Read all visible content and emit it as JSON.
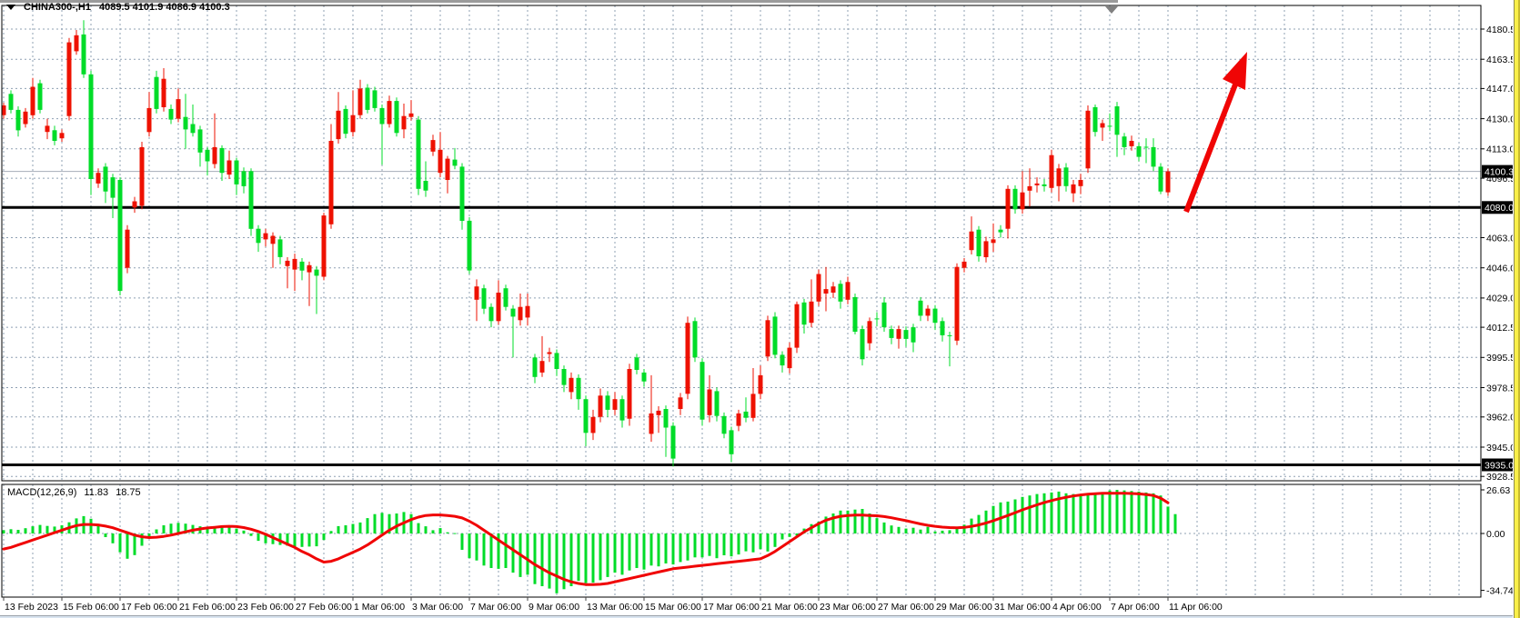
{
  "header": {
    "symbol_period": "CHINA300-,H1",
    "ohlc": "4089.5 4101.9 4086.9 4100.3"
  },
  "macd_panel": {
    "label": "MACD(12,26,9)",
    "value_main": "11.83",
    "value_signal": "18.75"
  },
  "colors": {
    "background": "#FFFFFF",
    "bull": "#EE1100",
    "bear": "#00DC28",
    "macd_histogram": "#00DC28",
    "macd_signal": "#F00505",
    "arrow": "#F00505",
    "grid": "#8FA0B3",
    "tag_bg": "#000000",
    "tag_text": "#FFFFFF",
    "current_price_line": "#A6ADB8",
    "level_line": "#000000",
    "right_strip": "#F9EF49"
  },
  "chart_data": {
    "type": "candlestick",
    "symbol": "CHINA300",
    "timeframe": "H1",
    "ohlc_display": {
      "open": "4089.5",
      "high": "4101.9",
      "low": "4086.9",
      "close": "4100.3"
    },
    "current_price": 4100.3,
    "hlines": [
      4080.0,
      3935.0
    ],
    "price_axis": {
      "ticks": [
        4180.5,
        4163.5,
        4147.0,
        4130.0,
        4113.0,
        4096.5,
        4063.0,
        4046.0,
        4029.0,
        4012.5,
        3995.5,
        3978.5,
        3962.0,
        3945.0,
        3928.5
      ],
      "gridlines": [
        4180.5,
        4163.5,
        4147.0,
        4130.0,
        4113.0,
        4096.5,
        4080.0,
        4063.0,
        4046.0,
        4029.0,
        4012.5,
        3995.5,
        3978.5,
        3962.0,
        3945.0,
        3928.5
      ],
      "tags": [
        4100.3,
        4080.0,
        3935.0
      ],
      "range": [
        3926.5,
        4190.0
      ]
    },
    "time_axis": {
      "labels": [
        "13 Feb 2023",
        "15 Feb 06:00",
        "17 Feb 06:00",
        "21 Feb 06:00",
        "23 Feb 06:00",
        "27 Feb 06:00",
        "1 Mar 06:00",
        "3 Mar 06:00",
        "7 Mar 06:00",
        "9 Mar 06:00",
        "13 Mar 06:00",
        "15 Mar 06:00",
        "17 Mar 06:00",
        "21 Mar 06:00",
        "23 Mar 06:00",
        "27 Mar 06:00",
        "29 Mar 06:00",
        "31 Mar 06:00",
        "4 Apr 06:00",
        "7 Apr 06:00",
        "11 Apr 06:00"
      ]
    },
    "candles": [
      [
        4132,
        4139,
        4130,
        4137.5
      ],
      [
        4144,
        4146,
        4133,
        4135
      ],
      [
        4135,
        4137,
        4120,
        4123.5
      ],
      [
        4127,
        4136,
        4125,
        4134
      ],
      [
        4132,
        4153,
        4130,
        4148
      ],
      [
        4150,
        4152,
        4133,
        4135
      ],
      [
        4122.5,
        4130,
        4118.5,
        4126
      ],
      [
        4123.5,
        4126,
        4115,
        4117.5
      ],
      [
        4119,
        4124,
        4117,
        4122
      ],
      [
        4131.5,
        4175.5,
        4129,
        4173
      ],
      [
        4168,
        4180,
        4166,
        4177
      ],
      [
        4177.5,
        4185.5,
        4153,
        4155
      ],
      [
        4155,
        4157,
        4087,
        4096
      ],
      [
        4093.5,
        4102,
        4091,
        4099.5
      ],
      [
        4103,
        4105,
        4082.5,
        4089
      ],
      [
        4097,
        4099,
        4074,
        4085.5
      ],
      [
        4095.5,
        4097,
        4030.5,
        4033
      ],
      [
        4046,
        4070,
        4043,
        4067.5
      ],
      [
        4080,
        4086,
        4077,
        4083.5
      ],
      [
        4081,
        4117,
        4079,
        4114
      ],
      [
        4122.5,
        4145,
        4120,
        4136
      ],
      [
        4153.5,
        4157,
        4133,
        4135.5
      ],
      [
        4136.5,
        4158.5,
        4134,
        4152.5
      ],
      [
        4135.5,
        4138,
        4127,
        4129.5
      ],
      [
        4130,
        4147,
        4128,
        4141
      ],
      [
        4131,
        4144,
        4113,
        4124
      ],
      [
        4127,
        4138,
        4120,
        4122
      ],
      [
        4124,
        4126,
        4103,
        4111
      ],
      [
        4112.5,
        4114,
        4098,
        4106
      ],
      [
        4104.5,
        4133,
        4102,
        4114
      ],
      [
        4113.5,
        4115,
        4095,
        4099.5
      ],
      [
        4098.5,
        4112,
        4096,
        4106.5
      ],
      [
        4106.5,
        4108,
        4087,
        4093
      ],
      [
        4100.5,
        4102.5,
        4088,
        4092
      ],
      [
        4100.5,
        4102,
        4064,
        4068
      ],
      [
        4068,
        4070,
        4055,
        4060
      ],
      [
        4062,
        4068,
        4058,
        4065.5
      ],
      [
        4059.5,
        4066,
        4046,
        4064
      ],
      [
        4062,
        4064,
        4048,
        4052
      ],
      [
        4047,
        4052,
        4034.5,
        4050
      ],
      [
        4045,
        4054,
        4033,
        4051
      ],
      [
        4049.5,
        4051.5,
        4039,
        4044.5
      ],
      [
        4043.5,
        4049.5,
        4024.5,
        4047.5
      ],
      [
        4045,
        4047,
        4020,
        4041.5
      ],
      [
        4041,
        4077,
        4039,
        4075.5
      ],
      [
        4070.5,
        4127,
        4068,
        4117.5
      ],
      [
        4118.5,
        4145,
        4116,
        4134.5
      ],
      [
        4135.5,
        4137.5,
        4119,
        4121.5
      ],
      [
        4122.5,
        4146,
        4120,
        4132
      ],
      [
        4132,
        4152,
        4130,
        4147
      ],
      [
        4147.5,
        4149.5,
        4133,
        4135
      ],
      [
        4146,
        4148,
        4134,
        4136
      ],
      [
        4136,
        4138,
        4104,
        4127
      ],
      [
        4127,
        4143,
        4125,
        4140
      ],
      [
        4140,
        4142,
        4120,
        4122
      ],
      [
        4124,
        4138.5,
        4119,
        4131.5
      ],
      [
        4131,
        4140.5,
        4129,
        4133
      ],
      [
        4129.5,
        4131.5,
        4087,
        4090.5
      ],
      [
        4095,
        4106,
        4086,
        4089.5
      ],
      [
        4111.5,
        4121,
        4109,
        4118
      ],
      [
        4099.5,
        4122.5,
        4097,
        4112.5
      ],
      [
        4095.5,
        4109,
        4088,
        4107.5
      ],
      [
        4107,
        4113.5,
        4101.5,
        4103.5
      ],
      [
        4103,
        4105,
        4067.5,
        4072.5
      ],
      [
        4072.5,
        4074.5,
        4042.5,
        4044.5
      ],
      [
        4028,
        4039.5,
        4016,
        4035.5
      ],
      [
        4034.5,
        4036.5,
        4020,
        4023
      ],
      [
        4024,
        4026,
        4012.5,
        4016
      ],
      [
        4016,
        4039,
        4014,
        4032
      ],
      [
        4034.5,
        4036.5,
        4022,
        4024
      ],
      [
        4023,
        4025,
        3995.5,
        4018.5
      ],
      [
        4016.5,
        4031.5,
        4013.5,
        4024
      ],
      [
        4018,
        4031.5,
        4013.5,
        4024.5
      ],
      [
        3995.5,
        3997.5,
        3981,
        3984.5
      ],
      [
        3987,
        4007.5,
        3984.5,
        3993.5
      ],
      [
        3997.5,
        4001,
        3993,
        3998.5
      ],
      [
        3998,
        4000,
        3985,
        3989
      ],
      [
        3989,
        3991,
        3976,
        3980
      ],
      [
        3976,
        3987,
        3972,
        3984
      ],
      [
        3984,
        3986,
        3966,
        3972
      ],
      [
        3972,
        3974,
        3945.5,
        3953
      ],
      [
        3953,
        3966,
        3949,
        3962
      ],
      [
        3962,
        3978,
        3959,
        3974
      ],
      [
        3974,
        3976.5,
        3962,
        3966
      ],
      [
        3966,
        3976,
        3963,
        3972
      ],
      [
        3972,
        3974,
        3956,
        3960
      ],
      [
        3961,
        3992,
        3957,
        3989
      ],
      [
        3995.5,
        3997.5,
        3986,
        3988.5
      ],
      [
        3987,
        3989,
        3979,
        3982
      ],
      [
        3952.5,
        3985.5,
        3948,
        3964
      ],
      [
        3963,
        3968,
        3953,
        3965.5
      ],
      [
        3966.5,
        3968.5,
        3939.5,
        3956
      ],
      [
        3957,
        3959,
        3934,
        3938.5
      ],
      [
        3966.5,
        3975.5,
        3963,
        3973
      ],
      [
        3975,
        4018.5,
        3972,
        4015
      ],
      [
        4016,
        4018,
        3993,
        3995.5
      ],
      [
        3993,
        3995,
        3957,
        3960.5
      ],
      [
        3963,
        3985.5,
        3959,
        3977.5
      ],
      [
        3976.5,
        3978.5,
        3959.5,
        3962.5
      ],
      [
        3962.5,
        3964.5,
        3950,
        3952.5
      ],
      [
        3954.5,
        3956.5,
        3936.5,
        3941
      ],
      [
        3957,
        3966,
        3954,
        3964
      ],
      [
        3965,
        3973,
        3959,
        3961.5
      ],
      [
        3961.5,
        3989.5,
        3959.5,
        3975
      ],
      [
        3975,
        3991,
        3972,
        3985.5
      ],
      [
        3996,
        4019,
        3993.5,
        4016.5
      ],
      [
        4018.5,
        4021,
        3995,
        3997
      ],
      [
        3997,
        3999,
        3987,
        3991
      ],
      [
        3989.5,
        4004,
        3986.5,
        4001
      ],
      [
        4001,
        4027,
        3998,
        4025.5
      ],
      [
        4026.5,
        4028.5,
        4009,
        4014
      ],
      [
        4015,
        4039.5,
        4012.5,
        4027
      ],
      [
        4027,
        4045,
        4024.5,
        4042.5
      ],
      [
        4031.5,
        4046.5,
        4021.5,
        4034
      ],
      [
        4032,
        4038,
        4029,
        4035.5
      ],
      [
        4037,
        4039,
        4023,
        4027
      ],
      [
        4028,
        4041,
        4025.5,
        4038
      ],
      [
        4029.5,
        4031.5,
        4008.5,
        4010
      ],
      [
        4011.5,
        4013.5,
        3991,
        3994.5
      ],
      [
        4003.5,
        4018,
        3999.5,
        4016
      ],
      [
        4017.5,
        4021,
        4013,
        4017
      ],
      [
        4026.5,
        4029.5,
        4010,
        4012.5
      ],
      [
        4011.5,
        4013.5,
        4003,
        4006.5
      ],
      [
        4006,
        4013.5,
        4000.5,
        4011.5
      ],
      [
        4011,
        4013,
        4001.5,
        4006
      ],
      [
        4012.5,
        4014.5,
        3998.5,
        4004
      ],
      [
        4027.5,
        4029.5,
        4016,
        4019
      ],
      [
        4019,
        4025,
        4016,
        4023
      ],
      [
        4023,
        4025,
        4011,
        4015
      ],
      [
        4016,
        4018,
        4004.5,
        4008
      ],
      [
        4008,
        4010,
        3990.5,
        4007.5
      ],
      [
        4005,
        4048.5,
        4002.5,
        4046.5
      ],
      [
        4046,
        4051.5,
        4043.5,
        4049.5
      ],
      [
        4056,
        4075,
        4053.5,
        4066.5
      ],
      [
        4067.5,
        4069.5,
        4049.5,
        4052.5
      ],
      [
        4052,
        4063.5,
        4049,
        4061
      ],
      [
        4060,
        4071,
        4055,
        4062
      ],
      [
        4067.5,
        4070,
        4063,
        4066
      ],
      [
        4068,
        4092.5,
        4062.5,
        4090.5
      ],
      [
        4090.5,
        4092.5,
        4076.5,
        4079
      ],
      [
        4079,
        4100.5,
        4076.5,
        4088.5
      ],
      [
        4089.5,
        4102,
        4080.5,
        4092
      ],
      [
        4092.5,
        4097,
        4088.5,
        4093.5
      ],
      [
        4093,
        4096,
        4089,
        4092
      ],
      [
        4091,
        4112.5,
        4088.5,
        4109.5
      ],
      [
        4092,
        4104.5,
        4083.5,
        4102
      ],
      [
        4102.5,
        4105,
        4089,
        4092
      ],
      [
        4088,
        4095.5,
        4083,
        4093
      ],
      [
        4092,
        4099,
        4087.5,
        4095.5
      ],
      [
        4102,
        4137.5,
        4099.5,
        4134.5
      ],
      [
        4136.5,
        4138,
        4120,
        4122.5
      ],
      [
        4125,
        4129.5,
        4117.5,
        4127.5
      ],
      [
        4126,
        4133,
        4123,
        4125.5
      ],
      [
        4137,
        4139.5,
        4108.5,
        4121
      ],
      [
        4120,
        4122,
        4109.5,
        4114
      ],
      [
        4114.5,
        4120.5,
        4112,
        4117.5
      ],
      [
        4114.5,
        4116.5,
        4106,
        4108.5
      ],
      [
        4114.2,
        4119,
        4105,
        4114
      ],
      [
        4114,
        4119,
        4100.5,
        4103
      ],
      [
        4103,
        4105,
        4087.5,
        4089
      ],
      [
        4088.5,
        4102,
        4086.5,
        4100.3
      ]
    ],
    "macd": {
      "label": "MACD(12,26,9)",
      "value_main": 11.83,
      "value_signal": 18.75,
      "axis_ticks": [
        {
          "v": 26.63,
          "label": "26.63"
        },
        {
          "v": 0,
          "label": "0.00"
        },
        {
          "v": -34.74,
          "label": "-34.74"
        }
      ],
      "histogram": [
        2.0,
        2.6,
        2.2,
        3.2,
        4.4,
        5.2,
        4.6,
        4.2,
        5.0,
        6.8,
        9.2,
        10.6,
        9.0,
        5.5,
        -2.2,
        -6.0,
        -11.5,
        -15.4,
        -13.2,
        -7.5,
        -2.0,
        2.5,
        5.0,
        6.0,
        6.5,
        6.0,
        5.2,
        4.4,
        3.8,
        4.2,
        4.6,
        4.0,
        3.0,
        1.8,
        -1.5,
        -4.5,
        -6.0,
        -6.5,
        -7.0,
        -7.5,
        -8.0,
        -8.2,
        -8.0,
        -7.8,
        -4.0,
        1.5,
        4.5,
        5.0,
        5.8,
        6.7,
        9.4,
        11.8,
        12.6,
        11.8,
        12.2,
        13.1,
        11.8,
        6.3,
        4.4,
        2.0,
        3.3,
        0.7,
        0.2,
        -10.0,
        -15.1,
        -16.5,
        -19.6,
        -21.1,
        -21.6,
        -21.1,
        -23.9,
        -26.6,
        -25.2,
        -30.9,
        -32.2,
        -33.6,
        -36.5,
        -34.0,
        -32.2,
        -28.9,
        -30.3,
        -30.0,
        -28.5,
        -26.6,
        -23.9,
        -25.2,
        -22.6,
        -21.1,
        -22.0,
        -19.6,
        -20.1,
        -18.3,
        -18.9,
        -17.4,
        -16.5,
        -14.6,
        -14.6,
        -13.7,
        -15.1,
        -13.3,
        -14.0,
        -12.8,
        -10.9,
        -11.5,
        -9.6,
        -11.0,
        -8.2,
        -3.6,
        -2.1,
        -1.3,
        3.0,
        5.7,
        7.2,
        10.3,
        12.2,
        14.0,
        14.0,
        14.6,
        15.0,
        12.2,
        9.4,
        6.7,
        4.9,
        4.0,
        3.0,
        3.5,
        2.4,
        4.0,
        1.2,
        1.7,
        2.0,
        3.0,
        5.4,
        9.1,
        11.3,
        14.0,
        16.8,
        19.0,
        19.5,
        20.8,
        22.3,
        23.2,
        24.1,
        24.5,
        25.0,
        25.6,
        24.5,
        24.1,
        23.2,
        24.5,
        23.8,
        25.0,
        26.3,
        26.63,
        26.3,
        25.9,
        25.6,
        25.0,
        24.5,
        23.2,
        16.4,
        11.83
      ],
      "signal": [
        -9.5,
        -8.5,
        -7.0,
        -5.5,
        -4.0,
        -2.5,
        -1.0,
        0.5,
        2.0,
        3.5,
        4.8,
        5.5,
        5.5,
        5.2,
        4.5,
        3.5,
        2.0,
        0.5,
        -1.0,
        -2.0,
        -2.5,
        -2.3,
        -1.8,
        -1.0,
        0.0,
        1.0,
        2.0,
        2.8,
        3.4,
        3.8,
        4.2,
        4.4,
        4.2,
        3.6,
        2.6,
        1.2,
        -0.5,
        -2.5,
        -4.5,
        -6.5,
        -8.5,
        -11.0,
        -13.0,
        -15.5,
        -17.5,
        -17.0,
        -15.5,
        -13.5,
        -11.5,
        -9.5,
        -7.0,
        -4.0,
        -1.0,
        2.0,
        4.5,
        6.5,
        8.5,
        10.0,
        11.0,
        11.3,
        11.3,
        11.0,
        10.5,
        9.5,
        7.5,
        5.0,
        2.0,
        -1.0,
        -4.0,
        -7.0,
        -10.0,
        -13.0,
        -16.0,
        -19.0,
        -21.5,
        -24.0,
        -26.0,
        -28.0,
        -29.5,
        -30.5,
        -31.2,
        -31.2,
        -31.0,
        -30.5,
        -29.5,
        -28.5,
        -27.5,
        -26.5,
        -25.5,
        -24.5,
        -23.5,
        -22.5,
        -21.5,
        -21.0,
        -20.5,
        -20.0,
        -19.5,
        -19.0,
        -18.5,
        -18.0,
        -17.5,
        -17.0,
        -16.5,
        -16.0,
        -15.5,
        -13.5,
        -11.0,
        -8.0,
        -5.0,
        -2.0,
        1.0,
        3.5,
        6.0,
        8.1,
        9.5,
        10.5,
        11.0,
        11.2,
        11.2,
        11.0,
        10.8,
        10.3,
        9.6,
        8.7,
        7.8,
        6.8,
        5.8,
        5.0,
        4.4,
        3.9,
        3.6,
        3.5,
        3.7,
        4.3,
        5.2,
        6.4,
        7.8,
        9.4,
        11.0,
        12.7,
        14.4,
        16.0,
        17.5,
        18.9,
        20.1,
        21.2,
        22.1,
        22.9,
        23.5,
        24.0,
        24.3,
        24.5,
        24.6,
        24.6,
        24.5,
        24.4,
        24.2,
        23.8,
        23.2,
        21.5,
        18.75
      ]
    },
    "annotation_arrow": {
      "type": "trend-arrow",
      "direction": "up",
      "color": "#F00505",
      "from": [
        1304,
        233
      ],
      "to": [
        1358,
        93
      ],
      "head": [
        [
          1371,
          57
        ],
        [
          1344,
          87
        ],
        [
          1369,
          99
        ]
      ]
    }
  }
}
